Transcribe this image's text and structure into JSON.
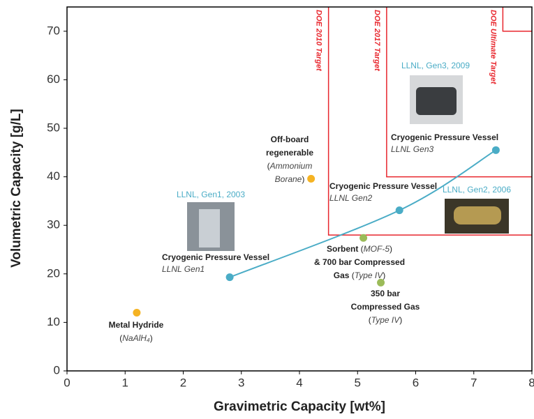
{
  "chart_data": {
    "type": "scatter",
    "xlabel": "Gravimetric Capacity [wt%]",
    "ylabel": "Volumetric Capacity [g/L]",
    "xlim": [
      0,
      8
    ],
    "xticks": [
      0,
      1,
      2,
      3,
      4,
      5,
      6,
      7,
      8
    ],
    "ylim": [
      0,
      75
    ],
    "yticks": [
      0,
      10,
      20,
      30,
      40,
      50,
      60,
      70
    ],
    "targets": [
      {
        "label": "DOE 2010 Target",
        "x": 4.5,
        "y": 28,
        "color": "#e8262d"
      },
      {
        "label": "DOE 2017 Target",
        "x": 5.5,
        "y": 40,
        "color": "#e8262d"
      },
      {
        "label": "DOE Ultimate Target",
        "x": 7.5,
        "y": 70,
        "color": "#e8262d"
      }
    ],
    "points": [
      {
        "x": 1.2,
        "y": 12,
        "color": "#f5b323",
        "connected": false,
        "lines": [
          [
            {
              "text": "Metal Hydride",
              "style": "bold"
            }
          ],
          [
            {
              "text": "(",
              "style": "normal"
            },
            {
              "text": "NaAlH₄",
              "style": "italic"
            },
            {
              "text": ")",
              "style": "normal"
            }
          ]
        ]
      },
      {
        "x": 4.2,
        "y": 39.6,
        "color": "#f5b323",
        "connected": false,
        "lines": [
          [
            {
              "text": "Off-board",
              "style": "bold"
            }
          ],
          [
            {
              "text": "regenerable",
              "style": "bold"
            }
          ],
          [
            {
              "text": "(",
              "style": "normal"
            },
            {
              "text": "Ammonium",
              "style": "italic"
            }
          ],
          [
            {
              "text": "Borane",
              "style": "italic"
            },
            {
              "text": ")",
              "style": "normal"
            }
          ]
        ]
      },
      {
        "x": 5.1,
        "y": 27.4,
        "color": "#9bbb59",
        "connected": false,
        "lines": [
          [
            {
              "text": "Sorbent",
              "style": "bold"
            },
            {
              "text": " (",
              "style": "normal"
            },
            {
              "text": "MOF-5",
              "style": "italic"
            },
            {
              "text": ")",
              "style": "normal"
            }
          ],
          [
            {
              "text": "& 700 bar Compressed",
              "style": "bold"
            }
          ],
          [
            {
              "text": "Gas",
              "style": "bold"
            },
            {
              "text": " (",
              "style": "normal"
            },
            {
              "text": "Type IV",
              "style": "italic"
            },
            {
              "text": ")",
              "style": "normal"
            }
          ]
        ]
      },
      {
        "x": 5.4,
        "y": 18.2,
        "color": "#9bbb59",
        "connected": false,
        "lines": [
          [
            {
              "text": "350 bar",
              "style": "bold"
            }
          ],
          [
            {
              "text": "Compressed Gas",
              "style": "bold"
            }
          ],
          [
            {
              "text": "(",
              "style": "normal"
            },
            {
              "text": "Type IV",
              "style": "italic"
            },
            {
              "text": ")",
              "style": "normal"
            }
          ]
        ]
      },
      {
        "x": 2.8,
        "y": 19.3,
        "color": "#4aacc6",
        "connected": true,
        "caption": "LLNL, Gen1, 2003",
        "lines": [
          [
            {
              "text": "Cryogenic Pressure Vessel",
              "style": "bold"
            }
          ],
          [
            {
              "text": "LLNL Gen1",
              "style": "italic"
            }
          ]
        ]
      },
      {
        "x": 5.72,
        "y": 33.1,
        "color": "#4aacc6",
        "connected": true,
        "caption": "LLNL, Gen2, 2006",
        "lines": [
          [
            {
              "text": "Cryogenic Pressure Vessel",
              "style": "bold"
            }
          ],
          [
            {
              "text": "LLNL Gen2",
              "style": "italic"
            }
          ]
        ]
      },
      {
        "x": 7.38,
        "y": 45.5,
        "color": "#4aacc6",
        "connected": true,
        "caption": "LLNL, Gen3, 2009",
        "lines": [
          [
            {
              "text": "Cryogenic Pressure Vessel",
              "style": "bold"
            }
          ],
          [
            {
              "text": "LLNL Gen3",
              "style": "italic"
            }
          ]
        ]
      }
    ]
  }
}
